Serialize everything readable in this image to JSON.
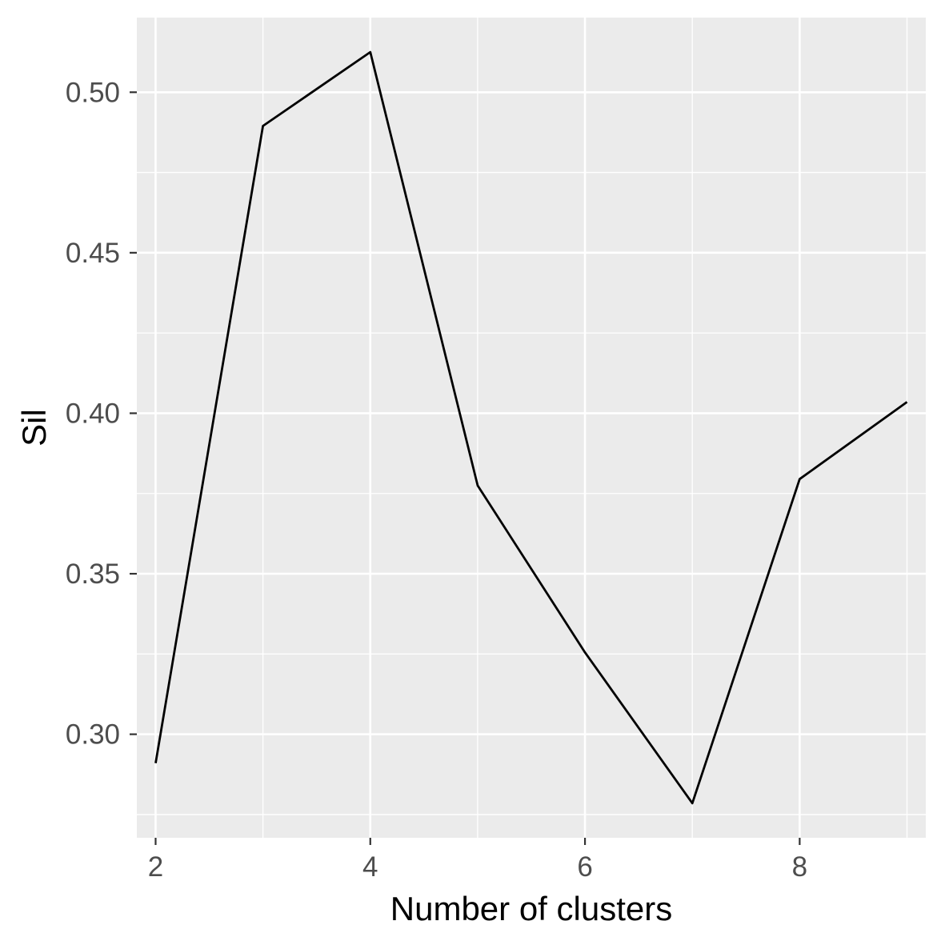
{
  "chart_data": {
    "type": "line",
    "xlabel": "Number of clusters",
    "ylabel": "Sil",
    "x": [
      2,
      3,
      4,
      5,
      6,
      7,
      8,
      9
    ],
    "series": [
      {
        "values": [
          0.291,
          0.4895,
          0.5125,
          0.3775,
          0.3255,
          0.2785,
          0.3795,
          0.4035
        ]
      }
    ],
    "xlim": [
      1.825,
      9.175
    ],
    "ylim": [
      0.26775,
      0.52325
    ],
    "x_ticks": [
      2,
      4,
      6,
      8
    ],
    "x_tick_labels": [
      "2",
      "4",
      "6",
      "8"
    ],
    "y_ticks": [
      0.3,
      0.35,
      0.4,
      0.45,
      0.5
    ],
    "y_tick_labels": [
      "0.30",
      "0.35",
      "0.40",
      "0.45",
      "0.50"
    ],
    "grid": true,
    "legend": "none",
    "colors": {
      "panel_background": "#ebebeb",
      "grid": "#ffffff",
      "line": "#000000",
      "tick_label": "#4d4d4d",
      "axis_title": "#000000"
    }
  }
}
